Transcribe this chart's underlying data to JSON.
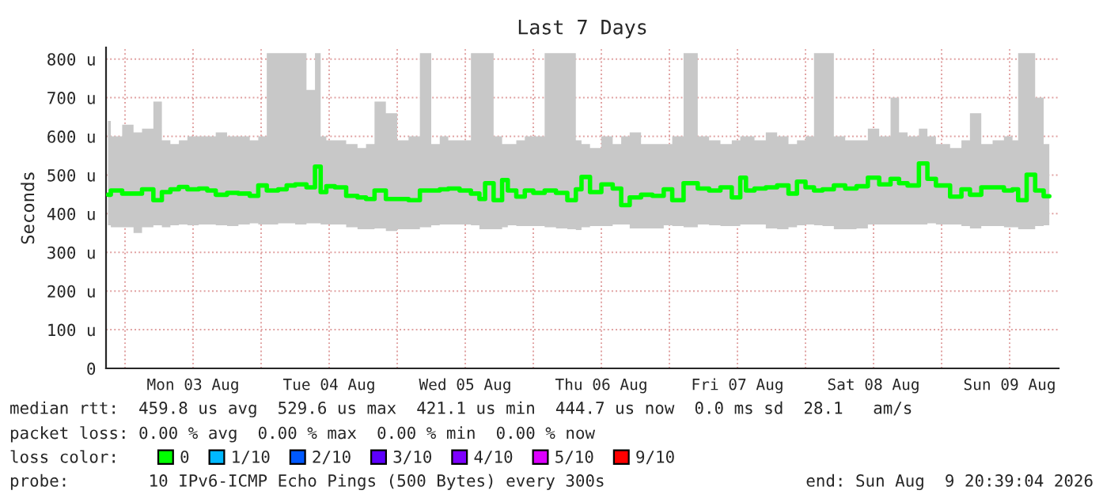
{
  "chart_data": {
    "type": "step",
    "title": "Last 7 Days",
    "ylabel": "Seconds",
    "x": [
      "2026-08-02T21:00",
      "2026-08-02T22:00",
      "2026-08-03T01:00",
      "2026-08-03T02:00",
      "2026-08-03T04:00",
      "2026-08-03T06:00",
      "2026-08-03T07:00",
      "2026-08-03T09:00",
      "2026-08-03T10:00",
      "2026-08-03T12:00",
      "2026-08-03T14:00",
      "2026-08-03T15:00",
      "2026-08-03T17:00",
      "2026-08-03T19:00",
      "2026-08-03T21:00",
      "2026-08-03T23:00",
      "2026-08-04T00:00",
      "2026-08-04T02:00",
      "2026-08-04T04:00",
      "2026-08-04T05:00",
      "2026-08-04T07:00",
      "2026-08-04T09:00",
      "2026-08-04T10:00",
      "2026-08-04T11:00",
      "2026-08-04T12:00",
      "2026-08-04T14:00",
      "2026-08-04T16:00",
      "2026-08-04T18:00",
      "2026-08-04T19:00",
      "2026-08-04T21:00",
      "2026-08-04T23:00",
      "2026-08-05T01:00",
      "2026-08-05T03:00",
      "2026-08-05T05:00",
      "2026-08-05T07:00",
      "2026-08-05T08:00",
      "2026-08-05T10:00",
      "2026-08-05T12:00",
      "2026-08-05T14:00",
      "2026-08-05T15:00",
      "2026-08-05T16:00",
      "2026-08-05T18:00",
      "2026-08-05T19:00",
      "2026-08-05T20:00",
      "2026-08-05T22:00",
      "2026-08-05T23:00",
      "2026-08-06T01:00",
      "2026-08-06T03:00",
      "2026-08-06T05:00",
      "2026-08-06T07:00",
      "2026-08-06T08:00",
      "2026-08-06T09:00",
      "2026-08-06T11:00",
      "2026-08-06T13:00",
      "2026-08-06T15:00",
      "2026-08-06T16:00",
      "2026-08-06T18:00",
      "2026-08-06T20:00",
      "2026-08-06T22:00",
      "2026-08-07T00:00",
      "2026-08-07T01:00",
      "2026-08-07T04:00",
      "2026-08-07T06:00",
      "2026-08-07T08:00",
      "2026-08-07T10:00",
      "2026-08-07T12:00",
      "2026-08-07T13:00",
      "2026-08-07T14:00",
      "2026-08-07T16:00",
      "2026-08-07T18:00",
      "2026-08-07T20:00",
      "2026-08-07T22:00",
      "2026-08-07T23:00",
      "2026-08-08T01:00",
      "2026-08-08T02:00",
      "2026-08-08T04:00",
      "2026-08-08T06:00",
      "2026-08-08T08:00",
      "2026-08-08T10:00",
      "2026-08-08T12:00",
      "2026-08-08T14:00",
      "2026-08-08T16:00",
      "2026-08-08T17:00",
      "2026-08-08T19:00",
      "2026-08-08T21:00",
      "2026-08-08T22:00",
      "2026-08-09T00:00",
      "2026-08-09T03:00",
      "2026-08-09T04:00",
      "2026-08-09T06:00",
      "2026-08-09T08:00",
      "2026-08-09T10:00",
      "2026-08-09T12:00",
      "2026-08-09T13:00",
      "2026-08-09T14:00",
      "2026-08-09T16:00",
      "2026-08-09T17:00",
      "2026-08-09T19:00"
    ],
    "series": [
      {
        "name": "0",
        "color": "#00ff00",
        "values": [
          449,
          460,
          452,
          452,
          463,
          435,
          456,
          463,
          469,
          463,
          465,
          460,
          449,
          454,
          452,
          446,
          473,
          460,
          463,
          473,
          476,
          468,
          522,
          456,
          471,
          468,
          446,
          442,
          438,
          460,
          438,
          438,
          435,
          460,
          460,
          463,
          465,
          460,
          452,
          438,
          479,
          435,
          487,
          460,
          444,
          460,
          454,
          460,
          454,
          435,
          463,
          495,
          456,
          476,
          465,
          422,
          442,
          449,
          446,
          463,
          435,
          479,
          465,
          460,
          468,
          442,
          493,
          460,
          465,
          468,
          473,
          452,
          483,
          468,
          460,
          463,
          473,
          465,
          471,
          493,
          476,
          490,
          479,
          473,
          530,
          490,
          473,
          444,
          463,
          449,
          468,
          468,
          460,
          463,
          435,
          501,
          460,
          445
        ],
        "lower": [
          370,
          365,
          365,
          350,
          365,
          370,
          365,
          370,
          372,
          370,
          372,
          372,
          370,
          368,
          372,
          375,
          372,
          372,
          375,
          375,
          372,
          375,
          375,
          372,
          372,
          372,
          365,
          360,
          360,
          362,
          355,
          360,
          360,
          365,
          370,
          372,
          372,
          372,
          370,
          360,
          360,
          360,
          365,
          370,
          368,
          368,
          368,
          365,
          362,
          360,
          358,
          365,
          368,
          368,
          372,
          372,
          362,
          362,
          362,
          370,
          368,
          365,
          372,
          370,
          368,
          368,
          372,
          372,
          372,
          362,
          360,
          365,
          370,
          372,
          370,
          368,
          360,
          360,
          362,
          372,
          372,
          372,
          372,
          372,
          372,
          375,
          372,
          372,
          368,
          362,
          368,
          368,
          365,
          365,
          360,
          360,
          368,
          370
        ],
        "upper": [
          640,
          600,
          630,
          610,
          620,
          690,
          590,
          580,
          590,
          600,
          600,
          600,
          610,
          600,
          600,
          590,
          600,
          815,
          815,
          815,
          815,
          720,
          815,
          600,
          590,
          590,
          580,
          570,
          580,
          690,
          660,
          590,
          600,
          815,
          580,
          600,
          590,
          590,
          815,
          815,
          815,
          600,
          580,
          580,
          590,
          600,
          600,
          815,
          815,
          815,
          590,
          580,
          570,
          600,
          580,
          600,
          610,
          580,
          580,
          580,
          600,
          815,
          600,
          590,
          580,
          590,
          600,
          600,
          590,
          610,
          600,
          580,
          590,
          600,
          815,
          815,
          600,
          590,
          590,
          620,
          600,
          700,
          610,
          600,
          620,
          600,
          580,
          570,
          590,
          660,
          580,
          590,
          600,
          590,
          815,
          815,
          700,
          580
        ]
      },
      {
        "name": "1/10",
        "color": "#00b8ff",
        "values": [
          null,
          null,
          null,
          null,
          null,
          null,
          null,
          null,
          null,
          null,
          null,
          null,
          null,
          null,
          null,
          null,
          null,
          null,
          null,
          null,
          null,
          null,
          null,
          null,
          null,
          null,
          null,
          null,
          null,
          null,
          null,
          null,
          null,
          null,
          null,
          null,
          null,
          null,
          null,
          null,
          null,
          null,
          null,
          null,
          null,
          null,
          null,
          null,
          null,
          null,
          null,
          null,
          null,
          null,
          null,
          null,
          null,
          null,
          null,
          null,
          null,
          null,
          null,
          null,
          null,
          null,
          null,
          null,
          null,
          null,
          null,
          null,
          null,
          null,
          null,
          null,
          null,
          null,
          null,
          null,
          null,
          null,
          null,
          null,
          null,
          null,
          null,
          null,
          null,
          null,
          null,
          null,
          null,
          null,
          null,
          null,
          null,
          null
        ]
      },
      {
        "name": "2/10",
        "color": "#0059ff",
        "values": [
          null,
          null,
          null,
          null,
          null,
          null,
          null,
          null,
          null,
          null,
          null,
          null,
          null,
          null,
          null,
          null,
          null,
          null,
          null,
          null,
          null,
          null,
          null,
          null,
          null,
          null,
          null,
          null,
          null,
          null,
          null,
          null,
          null,
          null,
          null,
          null,
          null,
          null,
          null,
          null,
          null,
          null,
          null,
          null,
          null,
          null,
          null,
          null,
          null,
          null,
          null,
          null,
          null,
          null,
          null,
          null,
          null,
          null,
          null,
          null,
          null,
          null,
          null,
          null,
          null,
          null,
          null,
          null,
          null,
          null,
          null,
          null,
          null,
          null,
          null,
          null,
          null,
          null,
          null,
          null,
          null,
          null,
          null,
          null,
          null,
          null,
          null,
          null,
          null,
          null,
          null,
          null,
          null,
          null,
          null,
          null,
          null,
          null
        ]
      },
      {
        "name": "3/10",
        "color": "#5e00ff",
        "values": [
          null,
          null,
          null,
          null,
          null,
          null,
          null,
          null,
          null,
          null,
          null,
          null,
          null,
          null,
          null,
          null,
          null,
          null,
          null,
          null,
          null,
          null,
          null,
          null,
          null,
          null,
          null,
          null,
          null,
          null,
          null,
          null,
          null,
          null,
          null,
          null,
          null,
          null,
          null,
          null,
          null,
          null,
          null,
          null,
          null,
          null,
          null,
          null,
          null,
          null,
          null,
          null,
          null,
          null,
          null,
          null,
          null,
          null,
          null,
          null,
          null,
          null,
          null,
          null,
          null,
          null,
          null,
          null,
          null,
          null,
          null,
          null,
          null,
          null,
          null,
          null,
          null,
          null,
          null,
          null,
          null,
          null,
          null,
          null,
          null,
          null,
          null,
          null,
          null,
          null,
          null,
          null,
          null,
          null,
          null,
          null,
          null,
          null
        ]
      },
      {
        "name": "4/10",
        "color": "#7e00ff",
        "values": [
          null,
          null,
          null,
          null,
          null,
          null,
          null,
          null,
          null,
          null,
          null,
          null,
          null,
          null,
          null,
          null,
          null,
          null,
          null,
          null,
          null,
          null,
          null,
          null,
          null,
          null,
          null,
          null,
          null,
          null,
          null,
          null,
          null,
          null,
          null,
          null,
          null,
          null,
          null,
          null,
          null,
          null,
          null,
          null,
          null,
          null,
          null,
          null,
          null,
          null,
          null,
          null,
          null,
          null,
          null,
          null,
          null,
          null,
          null,
          null,
          null,
          null,
          null,
          null,
          null,
          null,
          null,
          null,
          null,
          null,
          null,
          null,
          null,
          null,
          null,
          null,
          null,
          null,
          null,
          null,
          null,
          null,
          null,
          null,
          null,
          null,
          null,
          null,
          null,
          null,
          null,
          null,
          null,
          null,
          null,
          null,
          null,
          null
        ]
      },
      {
        "name": "5/10",
        "color": "#dd00ff",
        "values": [
          null,
          null,
          null,
          null,
          null,
          null,
          null,
          null,
          null,
          null,
          null,
          null,
          null,
          null,
          null,
          null,
          null,
          null,
          null,
          null,
          null,
          null,
          null,
          null,
          null,
          null,
          null,
          null,
          null,
          null,
          null,
          null,
          null,
          null,
          null,
          null,
          null,
          null,
          null,
          null,
          null,
          null,
          null,
          null,
          null,
          null,
          null,
          null,
          null,
          null,
          null,
          null,
          null,
          null,
          null,
          null,
          null,
          null,
          null,
          null,
          null,
          null,
          null,
          null,
          null,
          null,
          null,
          null,
          null,
          null,
          null,
          null,
          null,
          null,
          null,
          null,
          null,
          null,
          null,
          null,
          null,
          null,
          null,
          null,
          null,
          null,
          null,
          null,
          null,
          null,
          null,
          null,
          null,
          null,
          null,
          null,
          null,
          null
        ]
      },
      {
        "name": "9/10",
        "color": "#ff0000",
        "values": [
          null,
          null,
          null,
          null,
          null,
          null,
          null,
          null,
          null,
          null,
          null,
          null,
          null,
          null,
          null,
          null,
          null,
          null,
          null,
          null,
          null,
          null,
          null,
          null,
          null,
          null,
          null,
          null,
          null,
          null,
          null,
          null,
          null,
          null,
          null,
          null,
          null,
          null,
          null,
          null,
          null,
          null,
          null,
          null,
          null,
          null,
          null,
          null,
          null,
          null,
          null,
          null,
          null,
          null,
          null,
          null,
          null,
          null,
          null,
          null,
          null,
          null,
          null,
          null,
          null,
          null,
          null,
          null,
          null,
          null,
          null,
          null,
          null,
          null,
          null,
          null,
          null,
          null,
          null,
          null,
          null,
          null,
          null,
          null,
          null,
          null,
          null,
          null,
          null,
          null,
          null,
          null,
          null,
          null,
          null,
          null,
          null,
          null
        ]
      }
    ],
    "xlim": [
      "2026-08-02T20:39",
      "2026-08-09T20:39"
    ],
    "xticks": [
      {
        "value": "2026-08-03T00:00",
        "label": null
      },
      {
        "value": "2026-08-03T12:00",
        "label": "Mon 03 Aug"
      },
      {
        "value": "2026-08-04T00:00",
        "label": null
      },
      {
        "value": "2026-08-04T12:00",
        "label": "Tue 04 Aug"
      },
      {
        "value": "2026-08-05T00:00",
        "label": null
      },
      {
        "value": "2026-08-05T12:00",
        "label": "Wed 05 Aug"
      },
      {
        "value": "2026-08-06T00:00",
        "label": null
      },
      {
        "value": "2026-08-06T12:00",
        "label": "Thu 06 Aug"
      },
      {
        "value": "2026-08-07T00:00",
        "label": null
      },
      {
        "value": "2026-08-07T12:00",
        "label": "Fri 07 Aug"
      },
      {
        "value": "2026-08-08T00:00",
        "label": null
      },
      {
        "value": "2026-08-08T12:00",
        "label": "Sat 08 Aug"
      },
      {
        "value": "2026-08-09T00:00",
        "label": null
      },
      {
        "value": "2026-08-09T12:00",
        "label": "Sun 09 Aug"
      }
    ],
    "ylim": [
      0,
      830
    ],
    "yticks": [
      0,
      {
        "value": 100,
        "label": "100 u"
      },
      {
        "value": 200,
        "label": "200 u"
      },
      {
        "value": 300,
        "label": "300 u"
      },
      {
        "value": 400,
        "label": "400 u"
      },
      {
        "value": 500,
        "label": "500 u"
      },
      {
        "value": 600,
        "label": "600 u"
      },
      {
        "value": 700,
        "label": "700 u"
      },
      {
        "value": 800,
        "label": "800 u"
      }
    ],
    "grid": true,
    "legend": "bottom",
    "annotations": [
      "median rtt:  459.8 us avg  529.6 us max  421.1 us min  444.7 us now  0.0 ms sd  28.1   am/s",
      "packet loss: 0.00 % avg  0.00 % max  0.00 % min  0.00 % now",
      "loss color:",
      "probe:        10 IPv6-ICMP Echo Pings (500 Bytes) every 300s",
      "end: Sun Aug  9 20:39:04 2026"
    ]
  }
}
